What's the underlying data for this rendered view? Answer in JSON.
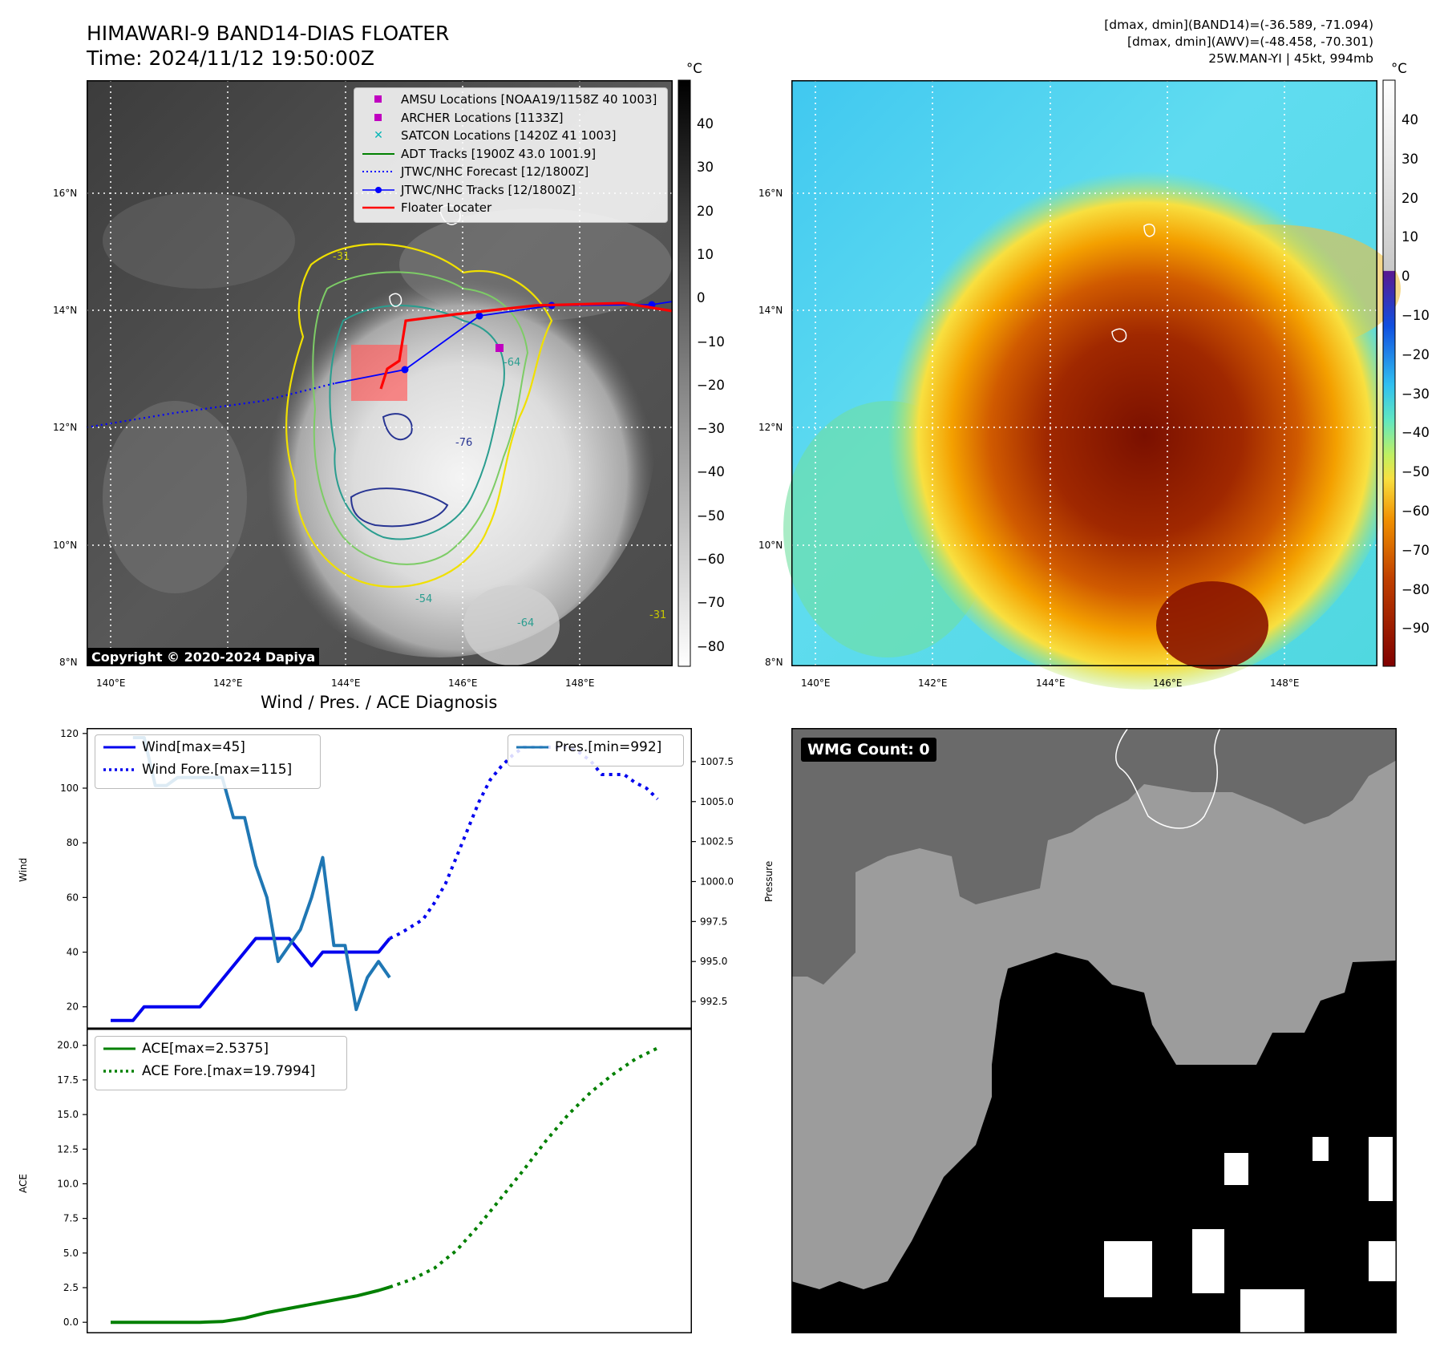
{
  "header": {
    "title_line1": "HIMAWARI-9 BAND14-DIAS FLOATER",
    "title_line2": "Time: 2024/11/12 19:50:00Z",
    "stats_line1": "[dmax, dmin](BAND14)=(-36.589, -71.094)",
    "stats_line2": "[dmax, dmin](AWV)=(-48.458, -70.301)",
    "stats_line3": "25W.MAN-YI | 45kt, 994mb"
  },
  "map": {
    "lat_labels": [
      "16°N",
      "14°N",
      "12°N",
      "10°N",
      "8°N"
    ],
    "lon_labels": [
      "140°E",
      "142°E",
      "144°E",
      "146°E",
      "148°E"
    ],
    "contour_labels": [
      "-31",
      "-64",
      "-76",
      "-54",
      "-64",
      "-31"
    ],
    "copyright": "Copyright © 2020-2024 Dapiya",
    "legend": [
      {
        "label": "AMSU Locations [NOAA19/1158Z 40 1003]",
        "color": "#c000c0",
        "symbol": "square"
      },
      {
        "label": "ARCHER Locations [1133Z]",
        "color": "#c000c0",
        "symbol": "square"
      },
      {
        "label": "SATCON Locations [1420Z 41 1003]",
        "color": "#00b5b5",
        "symbol": "x"
      },
      {
        "label": "ADT Tracks [1900Z 43.0 1001.9]",
        "color": "#008000",
        "symbol": "line"
      },
      {
        "label": "JTWC/NHC Forecast [12/1800Z]",
        "color": "#0000ff",
        "symbol": "dotted"
      },
      {
        "label": "JTWC/NHC Tracks [12/1800Z]",
        "color": "#0000ff",
        "symbol": "line-dot"
      },
      {
        "label": "Floater Locater",
        "color": "#ff0000",
        "symbol": "line"
      }
    ]
  },
  "colorbar_gray": {
    "unit": "°C",
    "ticks": [
      "40",
      "30",
      "20",
      "10",
      "0",
      "−10",
      "−20",
      "−30",
      "−40",
      "−50",
      "−60",
      "−70",
      "−80"
    ]
  },
  "colorbar_rainbow": {
    "unit": "°C",
    "ticks": [
      "40",
      "30",
      "20",
      "10",
      "0",
      "−10",
      "−20",
      "−30",
      "−40",
      "−50",
      "−60",
      "−70",
      "−80",
      "−90"
    ]
  },
  "chart_data": [
    {
      "type": "line",
      "title": "Wind / Pres. / ACE Diagnosis",
      "ylabel": "Wind",
      "ylabel_right": "Pressure",
      "ylim": [
        12,
        122
      ],
      "ylim_right": [
        990.8,
        1009.6
      ],
      "yticks": [
        "20",
        "40",
        "60",
        "80",
        "100",
        "120"
      ],
      "yticks_right": [
        "992.5",
        "995.0",
        "997.5",
        "1000.0",
        "1002.5",
        "1005.0",
        "1007.5"
      ],
      "series": [
        {
          "name": "Wind[max=45]",
          "axis": "left",
          "style": "solid",
          "color": "#0000ee",
          "x": [
            0,
            2,
            3,
            4,
            5,
            6,
            7,
            8,
            9,
            10,
            11,
            12,
            13,
            14,
            15,
            16,
            17,
            18,
            19,
            20,
            21,
            22,
            23,
            24,
            25
          ],
          "values": [
            15,
            15,
            20,
            20,
            20,
            20,
            20,
            20,
            25,
            30,
            35,
            40,
            45,
            45,
            45,
            45,
            40,
            35,
            40,
            40,
            40,
            40,
            40,
            40,
            45
          ]
        },
        {
          "name": "Wind Fore.[max=115]",
          "axis": "left",
          "style": "dotted",
          "color": "#0000ee",
          "x": [
            25,
            26,
            28,
            29,
            30,
            31,
            32,
            33,
            34,
            35,
            36,
            37,
            38,
            39,
            40,
            41,
            42,
            43,
            44,
            45,
            46,
            47,
            48,
            49
          ],
          "values": [
            45,
            47,
            52,
            58,
            65,
            75,
            85,
            95,
            103,
            108,
            112,
            115,
            115,
            115,
            115,
            115,
            113,
            110,
            105,
            105,
            105,
            102,
            100,
            96
          ]
        },
        {
          "name": "Pres.[min=992]",
          "axis": "right",
          "style": "solid",
          "color": "#1f77b4",
          "x": [
            2,
            3,
            4,
            5,
            6,
            7,
            8,
            9,
            10,
            11,
            12,
            13,
            14,
            15,
            16,
            17,
            18,
            19,
            20,
            21,
            22,
            23,
            24,
            25
          ],
          "values": [
            1009,
            1009,
            1006,
            1006,
            1006.5,
            1006.5,
            1006.5,
            1006.5,
            1006.5,
            1004,
            1004,
            1001,
            999,
            995,
            996,
            997,
            999,
            1001.5,
            996,
            996,
            992,
            994,
            995,
            994
          ]
        }
      ]
    },
    {
      "type": "line",
      "ylabel": "ACE",
      "ylim": [
        -0.8,
        21.2
      ],
      "yticks": [
        "0.0",
        "2.5",
        "5.0",
        "7.5",
        "10.0",
        "12.5",
        "15.0",
        "17.5",
        "20.0"
      ],
      "series": [
        {
          "name": "ACE[max=2.5375]",
          "style": "solid",
          "color": "#008000",
          "x": [
            0,
            2,
            4,
            6,
            8,
            10,
            12,
            14,
            16,
            18,
            20,
            22,
            24,
            25
          ],
          "values": [
            0,
            0,
            0,
            0,
            0,
            0.05,
            0.3,
            0.7,
            1.0,
            1.3,
            1.6,
            1.9,
            2.3,
            2.54
          ]
        },
        {
          "name": "ACE Fore.[max=19.7994]",
          "style": "dotted",
          "color": "#008000",
          "x": [
            25,
            27,
            29,
            31,
            33,
            35,
            37,
            39,
            41,
            43,
            45,
            47,
            49
          ],
          "values": [
            2.54,
            3.1,
            3.9,
            5.2,
            7.0,
            9.0,
            11.0,
            13.1,
            15.0,
            16.6,
            17.9,
            19.0,
            19.8
          ]
        }
      ]
    }
  ],
  "wmg": {
    "label": "WMG Count: 0"
  }
}
